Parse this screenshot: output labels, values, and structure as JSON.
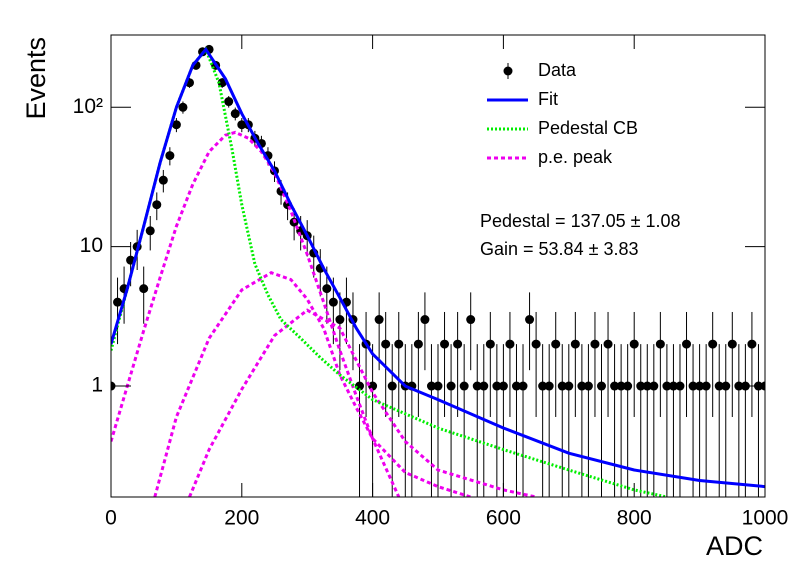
{
  "chart_data": {
    "type": "scatter",
    "x_label": "ADC",
    "y_label": "Events",
    "log_y": true,
    "grid": false,
    "xlim": [
      0,
      1000
    ],
    "ylim": [
      0.16,
      330
    ],
    "xticks": [
      0,
      200,
      400,
      600,
      800,
      1000
    ],
    "yticks": [
      1,
      10,
      {
        "value": 100,
        "label": "10²"
      }
    ],
    "annotations": [
      "Pedestal = 137.05 ± 1.08",
      "Gain = 53.84 ± 3.83"
    ],
    "series": [
      {
        "name": "Data",
        "type": "points",
        "color": "#000000",
        "x": [
          0,
          10,
          20,
          30,
          40,
          50,
          60,
          70,
          80,
          90,
          100,
          110,
          120,
          130,
          140,
          150,
          160,
          170,
          180,
          190,
          200,
          210,
          220,
          230,
          240,
          250,
          260,
          270,
          280,
          290,
          300,
          310,
          320,
          330,
          340,
          350,
          360,
          370,
          380,
          390,
          400,
          410,
          420,
          430,
          440,
          450,
          460,
          470,
          480,
          490,
          500,
          510,
          520,
          530,
          540,
          550,
          560,
          570,
          580,
          590,
          600,
          610,
          620,
          630,
          640,
          650,
          660,
          670,
          680,
          690,
          700,
          710,
          720,
          730,
          740,
          750,
          760,
          770,
          780,
          790,
          800,
          810,
          820,
          830,
          840,
          850,
          860,
          870,
          880,
          890,
          900,
          910,
          920,
          930,
          940,
          950,
          960,
          970,
          980,
          990,
          1000
        ],
        "values": [
          1,
          4,
          5,
          8,
          10,
          5,
          13,
          20,
          30,
          45,
          75,
          100,
          150,
          200,
          250,
          260,
          200,
          150,
          110,
          90,
          75,
          75,
          60,
          55,
          45,
          35,
          25,
          20,
          15,
          13,
          12,
          9,
          7,
          5,
          4,
          3,
          4,
          3,
          1,
          2,
          1,
          3,
          2,
          1,
          2,
          1,
          1,
          2,
          3,
          1,
          1,
          2,
          1,
          2,
          1,
          3,
          1,
          1,
          2,
          1,
          1,
          2,
          1,
          1,
          3,
          2,
          1,
          1,
          2,
          1,
          1,
          2,
          1,
          1,
          2,
          1,
          2,
          1,
          1,
          1,
          2,
          1,
          1,
          1,
          2,
          1,
          1,
          1,
          2,
          1,
          1,
          1,
          2,
          1,
          1,
          2,
          1,
          1,
          2,
          1,
          1
        ],
        "errors": [
          1,
          2,
          2.2,
          2.8,
          3.2,
          2.2,
          3.6,
          4.5,
          5.5,
          6.7,
          8.7,
          10,
          12.2,
          14.1,
          15.8,
          16.1,
          14.1,
          12.2,
          10.5,
          9.5,
          8.7,
          8.7,
          7.7,
          7.4,
          6.7,
          5.9,
          5,
          4.5,
          3.9,
          3.6,
          3.5,
          3,
          2.6,
          2.2,
          2,
          1.7,
          2,
          1.7,
          1,
          1.4,
          1,
          1.7,
          1.4,
          1,
          1.4,
          1,
          1,
          1.4,
          1.7,
          1,
          1,
          1.4,
          1,
          1.4,
          1,
          1.7,
          1,
          1,
          1.4,
          1,
          1,
          1.4,
          1,
          1,
          1.7,
          1.4,
          1,
          1,
          1.4,
          1,
          1,
          1.4,
          1,
          1,
          1.4,
          1,
          1.4,
          1,
          1,
          1,
          1.4,
          1,
          1,
          1,
          1.4,
          1,
          1,
          1,
          1.4,
          1,
          1,
          1,
          1.4,
          1,
          1,
          1.4,
          1,
          1,
          1.4,
          1,
          1
        ]
      },
      {
        "name": "Fit",
        "type": "line",
        "color": "#0000ff",
        "dash": "solid",
        "x": [
          0,
          25,
          50,
          75,
          100,
          125,
          145,
          175,
          200,
          225,
          250,
          275,
          300,
          325,
          350,
          375,
          400,
          450,
          500,
          600,
          700,
          800,
          900,
          1000
        ],
        "values": [
          2,
          5,
          14,
          40,
          100,
          200,
          260,
          160,
          90,
          55,
          35,
          20,
          12,
          7,
          4.3,
          2.6,
          1.7,
          1,
          0.8,
          0.5,
          0.33,
          0.25,
          0.21,
          0.19
        ]
      },
      {
        "name": "Pedestal CB",
        "type": "line",
        "color": "#00ee00",
        "dash": "dotted",
        "x": [
          0,
          25,
          50,
          75,
          100,
          125,
          145,
          165,
          185,
          200,
          220,
          240,
          260,
          290,
          320,
          350,
          400,
          500,
          600,
          700,
          800,
          850
        ],
        "values": [
          1.8,
          5,
          14,
          40,
          100,
          200,
          260,
          150,
          50,
          20,
          7.5,
          4.5,
          3,
          2.2,
          1.6,
          1.2,
          0.8,
          0.5,
          0.35,
          0.25,
          0.18,
          0.16
        ]
      },
      {
        "name": "p.e. peak",
        "type": "curves",
        "color": "#ee00ee",
        "dash": "dashed",
        "components": [
          {
            "x": [
              0,
              25,
              50,
              75,
              100,
              125,
              150,
              175,
              190,
              210,
              230,
              250,
              275,
              300,
              325,
              350,
              375,
              400,
              440
            ],
            "values": [
              0.4,
              1,
              2.5,
              6,
              14,
              28,
              48,
              63,
              66,
              60,
              48,
              34,
              18,
              8.8,
              4,
              1.8,
              0.85,
              0.42,
              0.16
            ]
          },
          {
            "x": [
              67,
              100,
              150,
              200,
              245,
              275,
              300,
              325,
              350,
              375,
              400,
              450,
              500,
              550
            ],
            "values": [
              0.16,
              0.6,
              2.2,
              4.9,
              6.5,
              5.8,
              4.2,
              2.6,
              1.2,
              0.7,
              0.42,
              0.24,
              0.19,
              0.16
            ]
          },
          {
            "x": [
              120,
              150,
              200,
              250,
              300,
              350,
              400,
              450,
              500,
              600,
              650
            ],
            "values": [
              0.16,
              0.35,
              0.95,
              2.3,
              3.5,
              2.6,
              0.9,
              0.4,
              0.25,
              0.18,
              0.16
            ]
          }
        ]
      }
    ]
  }
}
